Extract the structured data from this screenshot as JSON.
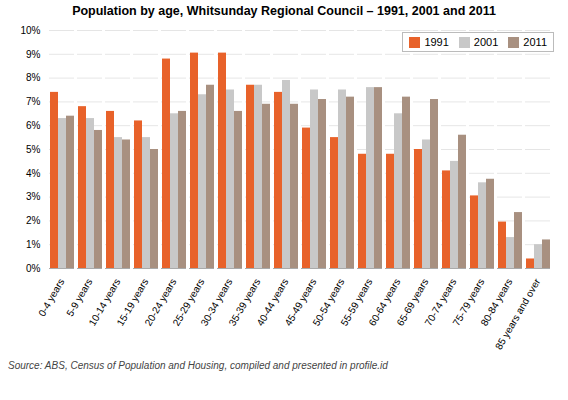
{
  "chart_data": {
    "type": "bar",
    "title": "Population by age, Whitsunday Regional Council – 1991, 2001 and 2011",
    "source": "Source:  ABS, Census of Population and Housing, compiled and presented in profile.id",
    "categories": [
      "0-4 years",
      "5-9 years",
      "10-14 years",
      "15-19 years",
      "20-24 years",
      "25-29 years",
      "30-34 years",
      "35-39 years",
      "40-44 years",
      "45-49 years",
      "50-54 years",
      "55-59 years",
      "60-64 years",
      "65-69 years",
      "70-74 years",
      "75-79 years",
      "80-84 years",
      "85 years and over"
    ],
    "series": [
      {
        "name": "1991",
        "color": "#E8622A",
        "values": [
          7.4,
          6.8,
          6.6,
          6.2,
          8.8,
          9.05,
          9.05,
          7.7,
          7.4,
          5.9,
          5.5,
          4.8,
          4.8,
          5.0,
          4.1,
          3.05,
          1.95,
          0.4
        ]
      },
      {
        "name": "2001",
        "color": "#C8C8C8",
        "values": [
          6.3,
          6.3,
          5.5,
          5.5,
          6.5,
          7.3,
          7.5,
          7.7,
          7.9,
          7.5,
          7.5,
          7.6,
          6.5,
          5.4,
          4.5,
          3.6,
          1.3,
          1.0
        ]
      },
      {
        "name": "2011",
        "color": "#A89080",
        "values": [
          6.4,
          5.8,
          5.4,
          5.0,
          6.6,
          7.7,
          6.6,
          6.9,
          6.9,
          7.1,
          7.2,
          7.6,
          7.2,
          7.1,
          5.6,
          3.75,
          2.35,
          1.2
        ]
      }
    ],
    "ylim": [
      0,
      10
    ],
    "yticks": [
      {
        "value": 0,
        "label": "0%"
      },
      {
        "value": 1,
        "label": "1%"
      },
      {
        "value": 2,
        "label": "2%"
      },
      {
        "value": 3,
        "label": "3%"
      },
      {
        "value": 4,
        "label": "4%"
      },
      {
        "value": 5,
        "label": "5%"
      },
      {
        "value": 6,
        "label": "6%"
      },
      {
        "value": 7,
        "label": "7%"
      },
      {
        "value": 8,
        "label": "8%"
      },
      {
        "value": 9,
        "label": "9%"
      },
      {
        "value": 10,
        "label": "10%"
      }
    ],
    "grid": true,
    "legend": "upper right"
  }
}
